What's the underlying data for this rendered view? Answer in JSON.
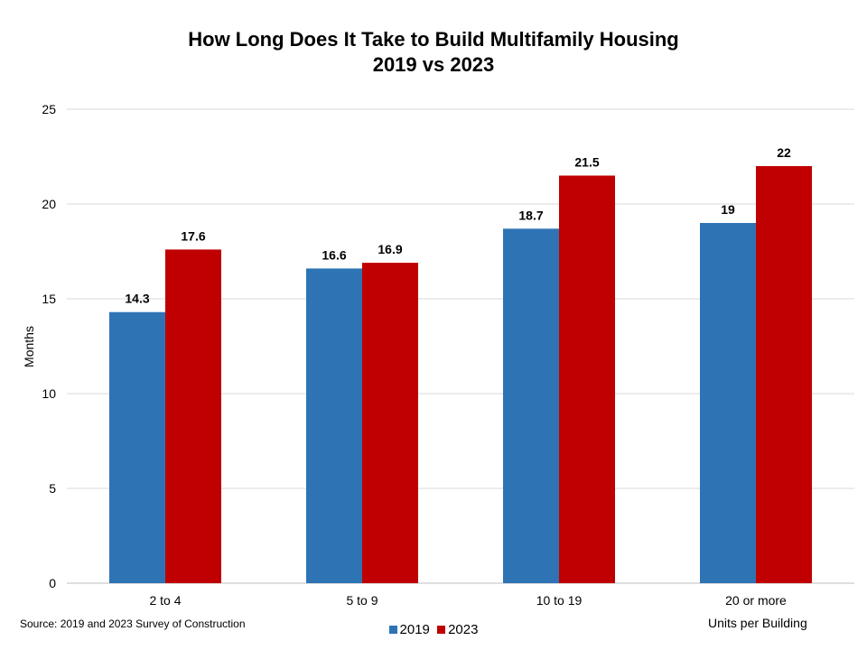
{
  "chart_data": {
    "type": "bar",
    "title": "How Long Does It Take to Build Multifamily Housing",
    "subtitle": "2019 vs 2023",
    "xlabel": "Units per Building",
    "ylabel": "Months",
    "source": "Source: 2019 and 2023 Survey of Construction",
    "categories": [
      "2 to 4",
      "5 to 9",
      "10 to 19",
      "20 or more"
    ],
    "series": [
      {
        "name": "2019",
        "color": "#2e74b5",
        "values": [
          14.3,
          16.6,
          18.7,
          19
        ],
        "labels": [
          "14.3",
          "16.6",
          "18.7",
          "19"
        ]
      },
      {
        "name": "2023",
        "color": "#c00000",
        "values": [
          17.6,
          16.9,
          21.5,
          22
        ],
        "labels": [
          "17.6",
          "16.9",
          "21.5",
          "22"
        ]
      }
    ],
    "ylim": [
      0,
      25
    ],
    "yticks": [
      "0",
      "5",
      "10",
      "15",
      "20",
      "25"
    ],
    "grid": true,
    "legend_position": "bottom"
  }
}
